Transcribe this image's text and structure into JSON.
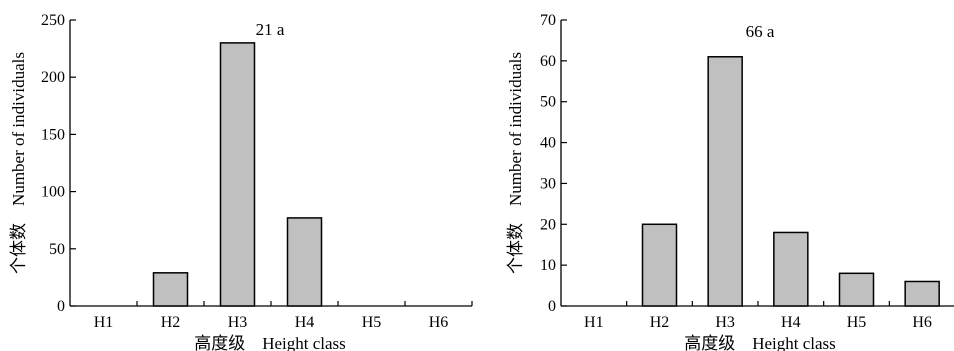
{
  "chart_data": [
    {
      "type": "bar",
      "title": "21 a",
      "categories": [
        "H1",
        "H2",
        "H3",
        "H4",
        "H5",
        "H6"
      ],
      "values": [
        0,
        29,
        230,
        77,
        0,
        0
      ],
      "ylim": [
        0,
        250
      ],
      "yticks": [
        0,
        50,
        100,
        150,
        200,
        250
      ],
      "xlabel": "高度级　Height class",
      "ylabel": "个体数　Number of individuals",
      "bar_color": "#c0c0c0",
      "grid": false
    },
    {
      "type": "bar",
      "title": "66 a",
      "categories": [
        "H1",
        "H2",
        "H3",
        "H4",
        "H5",
        "H6"
      ],
      "values": [
        0,
        20,
        61,
        18,
        8,
        6
      ],
      "ylim": [
        0,
        70
      ],
      "yticks": [
        0,
        10,
        20,
        30,
        40,
        50,
        60,
        70
      ],
      "xlabel": "高度级　Height class",
      "ylabel": "个体数　Number of individuals",
      "bar_color": "#c0c0c0",
      "grid": false
    }
  ]
}
